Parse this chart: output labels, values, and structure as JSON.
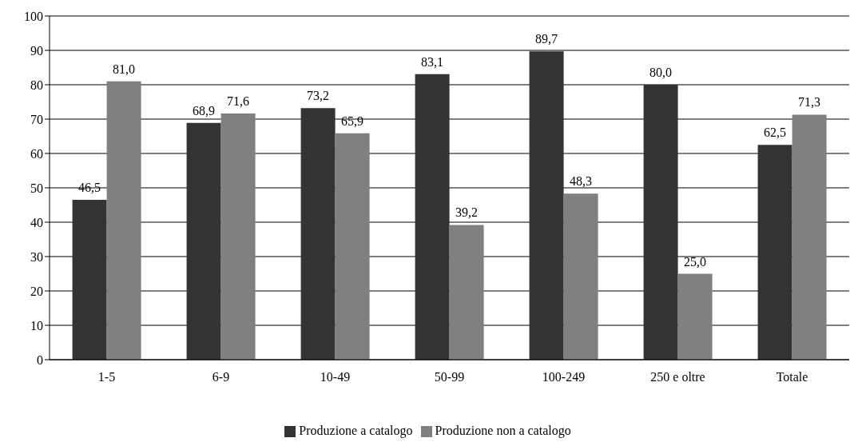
{
  "chart_data": {
    "type": "bar",
    "categories": [
      "1-5",
      "6-9",
      "10-49",
      "50-99",
      "100-249",
      "250 e oltre",
      "Totale"
    ],
    "series": [
      {
        "name": "Produzione a catalogo",
        "color": "#333333",
        "values": [
          46.5,
          68.9,
          73.2,
          83.1,
          89.7,
          80.0,
          62.5
        ],
        "value_labels": [
          "46,5",
          "68,9",
          "73,2",
          "83,1",
          "89,7",
          "80,0",
          "62,5"
        ]
      },
      {
        "name": "Produzione non a catalogo",
        "color": "#808080",
        "values": [
          81.0,
          71.6,
          65.9,
          39.2,
          48.3,
          25.0,
          71.3
        ],
        "value_labels": [
          "81,0",
          "71,6",
          "65,9",
          "39,2",
          "48,3",
          "25,0",
          "71,3"
        ]
      }
    ],
    "ylim": [
      0,
      100
    ],
    "yticks": [
      0,
      10,
      20,
      30,
      40,
      50,
      60,
      70,
      80,
      90,
      100
    ],
    "grid": "y",
    "legend": "bottom"
  }
}
